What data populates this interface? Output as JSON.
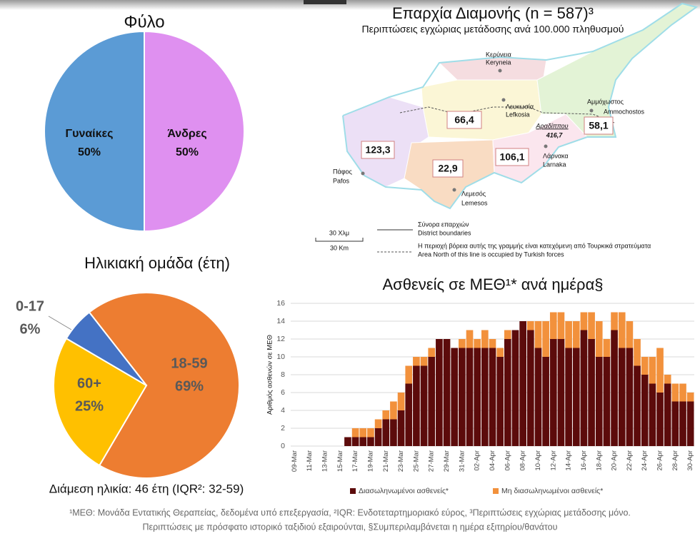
{
  "chart_data": [
    {
      "type": "pie",
      "title": "Φύλο",
      "categories": [
        "Γυναίκες",
        "Άνδρες"
      ],
      "values": [
        50,
        50
      ],
      "value_labels": [
        "50%",
        "50%"
      ],
      "colors": [
        "#df90f0",
        "#5b9bd5"
      ]
    },
    {
      "type": "pie",
      "title": "Ηλικιακή ομάδα (έτη)",
      "categories": [
        "18-59",
        "60+",
        "0-17"
      ],
      "values": [
        69,
        25,
        6
      ],
      "value_labels": [
        "69%",
        "25%",
        "6%"
      ],
      "colors": [
        "#ed7d31",
        "#ffc000",
        "#4472c4"
      ],
      "note": "Διάμεση ηλικία: 46 έτη (IQR²: 32-59)"
    },
    {
      "type": "stacked-bar",
      "title": "Ασθενείς σε ΜΕΘ¹* ανά ημέρα§",
      "y_label": "Αριθμός ασθενών σε ΜΕΘ",
      "categories": [
        "09-Mar",
        null,
        "11-Mar",
        null,
        "13-Mar",
        null,
        "15-Mar",
        null,
        "17-Mar",
        null,
        "19-Mar",
        null,
        "21-Mar",
        null,
        "23-Mar",
        null,
        "25-Mar",
        null,
        "27-Mar",
        null,
        "29-Mar",
        null,
        "31-Mar",
        null,
        "02-Apr",
        null,
        "04-Apr",
        null,
        "06-Apr",
        null,
        "08-Apr",
        null,
        "10-Apr",
        null,
        "12-Apr",
        null,
        "14-Apr",
        null,
        "16-Apr",
        null,
        "18-Apr",
        null,
        "20-Apr",
        null,
        "22-Apr",
        null,
        "24-Apr",
        null,
        "26-Apr",
        null,
        "28-Apr",
        null,
        "30-Apr"
      ],
      "series": [
        {
          "name": "Διασωληνωμένοι ασθενείς*",
          "color": "#5c0b0b",
          "values": [
            0,
            0,
            0,
            0,
            0,
            0,
            0,
            1,
            1,
            1,
            1,
            2,
            3,
            3,
            4,
            7,
            9,
            9,
            10,
            12,
            12,
            11,
            11,
            11,
            11,
            11,
            11,
            10,
            12,
            13,
            14,
            13,
            11,
            10,
            12,
            12,
            11,
            11,
            13,
            12,
            10,
            10,
            13,
            11,
            11,
            9,
            8,
            7,
            6,
            7,
            5,
            5,
            5
          ]
        },
        {
          "name": "Μη διασωληνωμένοι ασθενείς*",
          "color": "#f2913c",
          "values": [
            0,
            0,
            0,
            0,
            0,
            0,
            0,
            0,
            1,
            1,
            1,
            1,
            1,
            2,
            2,
            2,
            1,
            1,
            1,
            0,
            0,
            0,
            1,
            2,
            1,
            2,
            1,
            1,
            1,
            0,
            0,
            1,
            3,
            4,
            3,
            3,
            3,
            3,
            2,
            3,
            4,
            2,
            2,
            4,
            3,
            3,
            2,
            3,
            5,
            1,
            2,
            2,
            1
          ]
        }
      ],
      "ylim": [
        0,
        16
      ],
      "yticks": [
        0,
        2,
        4,
        6,
        8,
        10,
        12,
        14,
        16
      ],
      "grid": true
    }
  ],
  "map": {
    "title": "Επαρχία Διαμονής (n = 587)³",
    "subtitle": "Περιπτώσεις εγχώριας μετάδοσης ανά 100.000 πληθυσμού",
    "cities": [
      {
        "el": "Κερύνεια",
        "en": "Keryneia"
      },
      {
        "el": "Λευκωσία",
        "en": "Lefkosia"
      },
      {
        "el": "Αμμόχωστος",
        "en": "Ammochostos"
      },
      {
        "el": "Λάρνακα",
        "en": "Larnaka"
      },
      {
        "el": "Λεμεσός",
        "en": "Lemesos"
      },
      {
        "el": "Πάφος",
        "en": "Pafos"
      }
    ],
    "rates": [
      "66,4",
      "123,3",
      "22,9",
      "106,1",
      "58,1"
    ],
    "hotspot": {
      "name": "Αραδίππου",
      "rate": "416,7"
    },
    "legend": {
      "boundary_el": "Σύνορα επαρχιών",
      "boundary_en": "District boundaries",
      "line_el": "Η περιοχή βόρεια αυτής της γραμμής είναι κατεχόμενη από Τουρκικά στρατεύματα",
      "line_en": "Area North of this line is occupied by Turkish forces"
    },
    "scale": {
      "el": "30 Χλμ",
      "en": "30 Km"
    }
  },
  "footnote": [
    "¹ΜΕΘ: Μονάδα Εντατικής Θεραπείας, δεδομένα υπό επεξεργασία, ²IQR: Ενδοτεταρτημοριακό εύρος, ³Περιπτώσεις εγχώριας μετάδοσης μόνο.",
    "Περιπτώσεις με πρόσφατο ιστορικό ταξιδιού εξαιρούνται, §Συμπεριλαμβάνεται η ημέρα εξιτηρίου/θανάτου"
  ]
}
